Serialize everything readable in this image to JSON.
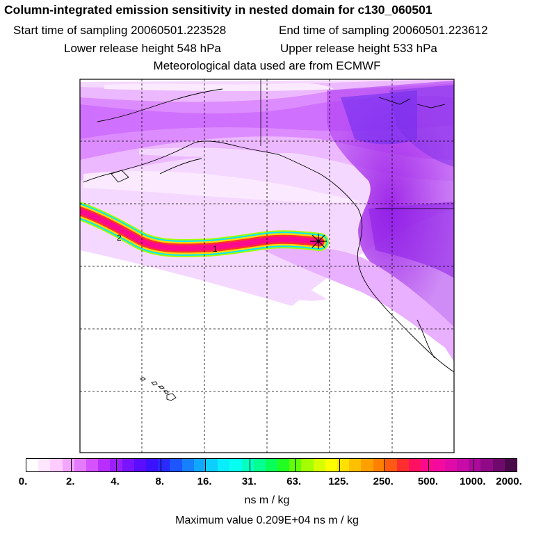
{
  "header": {
    "title": "Column-integrated emission sensitivity in nested domain for c130_060501",
    "start_label": "Start time of sampling 20060501.223528",
    "end_label": "End time of sampling 20060501.223612",
    "lower_label": "Lower release height  548 hPa",
    "upper_label": "Upper release height  533 hPa",
    "met_label": "Meteorological data used are from ECMWF"
  },
  "map": {
    "trajectory_labels": [
      "2",
      "1"
    ]
  },
  "colorbar": {
    "tick_labels": [
      "0.",
      "2.",
      "4.",
      "8.",
      "16.",
      "31.",
      "63.",
      "125.",
      "250.",
      "500.",
      "1000.",
      "2000."
    ],
    "colors": [
      "#ffffff",
      "#ffe6ff",
      "#ffccff",
      "#f2a6ff",
      "#e47aff",
      "#d452ff",
      "#b82eff",
      "#9b1fff",
      "#7a14ff",
      "#5a0dff",
      "#3b12ff",
      "#2a2aff",
      "#1d55ff",
      "#1680ff",
      "#10a8ff",
      "#0ccfff",
      "#08eeff",
      "#06fff0",
      "#05ffc0",
      "#05ff90",
      "#08ff5a",
      "#22ff22",
      "#62ff0a",
      "#a4ff00",
      "#d8ff00",
      "#ffff00",
      "#ffe000",
      "#ffc000",
      "#ffa000",
      "#ff8000",
      "#ff5a14",
      "#ff2e2e",
      "#ff1060",
      "#ff0a8c",
      "#f50aa0",
      "#e00aa8",
      "#c80aa8",
      "#ad0a9c",
      "#900a88",
      "#6f0a6c",
      "#4a0a4a"
    ],
    "units": "ns m / kg"
  },
  "footer": {
    "max_value": "Maximum value  0.209E+04 ns m / kg"
  }
}
